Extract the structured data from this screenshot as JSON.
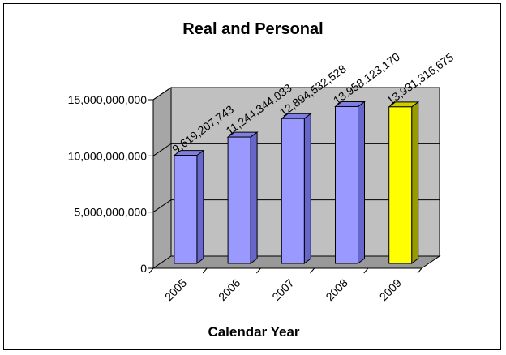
{
  "chart_data": {
    "type": "bar",
    "title": "Real and Personal",
    "xlabel": "Calendar Year",
    "ylabel": "",
    "categories": [
      "2005",
      "2006",
      "2007",
      "2008",
      "2009"
    ],
    "values": [
      9619207743,
      11244344033,
      12894532528,
      13958123170,
      13931316675
    ],
    "data_labels": [
      "9,619,207,743",
      "11,244,344,033",
      "12,894,532,528",
      "13,958,123,170",
      "13,931,316,675"
    ],
    "yticks": [
      "0",
      "5,000,000,000",
      "10,000,000,000",
      "15,000,000,000"
    ],
    "ytick_values": [
      0,
      5000000000,
      10000000000,
      15000000000
    ],
    "ylim": [
      0,
      15000000000
    ],
    "grid": true,
    "legend": "none",
    "colors": {
      "bar": "#9999ff",
      "bar_highlight": "#ffff00",
      "wall": "#c0c0c0"
    },
    "highlight_index": 4
  }
}
